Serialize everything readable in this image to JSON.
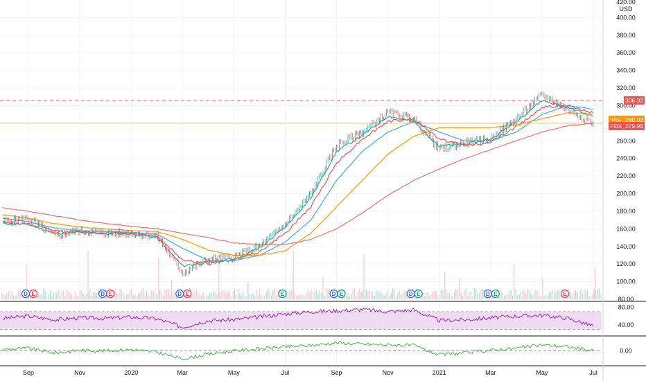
{
  "chart_data": {
    "type": "line",
    "instrument": "FDX",
    "currency": "USD",
    "x_ticks": [
      "Sep",
      "Nov",
      "2020",
      "Mar",
      "May",
      "Jul",
      "Sep",
      "Nov",
      "2021",
      "Mar",
      "May",
      "Jul"
    ],
    "y_ticks": [
      "420.00",
      "400.00",
      "380.00",
      "360.00",
      "340.00",
      "320.00",
      "300.00",
      "280.00",
      "260.00",
      "240.00",
      "220.00",
      "200.00",
      "180.00",
      "160.00",
      "140.00",
      "120.00",
      "100.00",
      "80.00"
    ],
    "ylim": [
      80,
      420
    ],
    "price_tags": [
      {
        "label": "",
        "value": "306.02",
        "color": "#ef5350"
      },
      {
        "label": "Pre",
        "value": "280.02",
        "color": "#ff9800"
      },
      {
        "label": "FDX",
        "value": "279.95",
        "color": "#ef5350"
      }
    ],
    "resistance_level": 306.02,
    "last_price": 279.95,
    "price_series": {
      "name": "",
      "x": [
        "2019-08",
        "2019-09",
        "2019-10",
        "2019-11",
        "2019-12",
        "2020-01",
        "2020-02",
        "2020-03",
        "2020-04",
        "2020-05",
        "2020-06",
        "2020-07",
        "2020-08",
        "2020-09",
        "2020-10",
        "2020-11",
        "2020-12",
        "2021-01",
        "2021-02",
        "2021-03",
        "2021-04",
        "2021-05",
        "2021-06",
        "2021-07"
      ],
      "y": [
        168,
        172,
        152,
        158,
        155,
        155,
        152,
        110,
        125,
        128,
        140,
        165,
        200,
        255,
        270,
        292,
        285,
        250,
        258,
        262,
        285,
        312,
        296,
        280
      ]
    },
    "moving_averages": [
      {
        "color": "#26a69a",
        "y": [
          166,
          165,
          155,
          156,
          155,
          155,
          150,
          118,
          122,
          126,
          138,
          162,
          195,
          248,
          266,
          288,
          282,
          254,
          256,
          262,
          282,
          306,
          298,
          288
        ]
      },
      {
        "color": "#ef5350",
        "y": [
          168,
          165,
          158,
          156,
          155,
          155,
          152,
          125,
          120,
          125,
          134,
          155,
          185,
          235,
          262,
          282,
          285,
          262,
          255,
          258,
          276,
          298,
          300,
          292
        ]
      },
      {
        "color": "#42a5f5",
        "y": [
          172,
          168,
          161,
          158,
          157,
          156,
          154,
          138,
          124,
          124,
          130,
          145,
          170,
          215,
          248,
          270,
          282,
          270,
          260,
          260,
          270,
          290,
          300,
          296
        ]
      },
      {
        "color": "#ff9800",
        "y": [
          176,
          172,
          166,
          162,
          160,
          158,
          157,
          148,
          136,
          130,
          130,
          135,
          155,
          185,
          215,
          245,
          265,
          275,
          275,
          275,
          278,
          285,
          292,
          290
        ]
      },
      {
        "color": "#e57373",
        "y": [
          184,
          180,
          175,
          170,
          166,
          163,
          160,
          155,
          150,
          144,
          142,
          142,
          148,
          160,
          178,
          198,
          215,
          228,
          240,
          250,
          260,
          270,
          277,
          280
        ]
      }
    ],
    "events": [
      {
        "type": "D",
        "x": "2019-09"
      },
      {
        "type": "E",
        "x": "2019-09"
      },
      {
        "type": "D",
        "x": "2019-12"
      },
      {
        "type": "E",
        "x": "2019-12"
      },
      {
        "type": "D",
        "x": "2020-03"
      },
      {
        "type": "E",
        "x": "2020-03"
      },
      {
        "type": "E",
        "x": "2020-07"
      },
      {
        "type": "D",
        "x": "2020-09"
      },
      {
        "type": "E",
        "x": "2020-09"
      },
      {
        "type": "D",
        "x": "2020-12"
      },
      {
        "type": "E",
        "x": "2020-12"
      },
      {
        "type": "D",
        "x": "2021-03"
      },
      {
        "type": "E",
        "x": "2021-03"
      },
      {
        "type": "E",
        "x": "2021-06"
      }
    ],
    "rsi": {
      "y_ticks": [
        "80.00",
        "40.00"
      ],
      "ylim": [
        20,
        90
      ],
      "band": [
        30,
        70
      ],
      "color": "#9c27b0",
      "y": [
        55,
        60,
        52,
        56,
        55,
        58,
        54,
        35,
        50,
        52,
        58,
        65,
        70,
        72,
        75,
        70,
        74,
        50,
        52,
        56,
        60,
        62,
        55,
        38
      ]
    },
    "oscillator": {
      "y_ticks": [
        "0.00"
      ],
      "ylim": [
        -20,
        20
      ],
      "zero_line": 0,
      "color": "#4caf50",
      "y": [
        2,
        4,
        -3,
        1,
        0,
        2,
        -2,
        -12,
        -5,
        0,
        3,
        6,
        8,
        12,
        10,
        9,
        8,
        -6,
        -3,
        1,
        4,
        9,
        6,
        0
      ]
    },
    "colors": {
      "up": "#26a69a",
      "down": "#ef5350",
      "grid": "#f0f3fa",
      "rsi_band": "#e1bee7"
    }
  }
}
